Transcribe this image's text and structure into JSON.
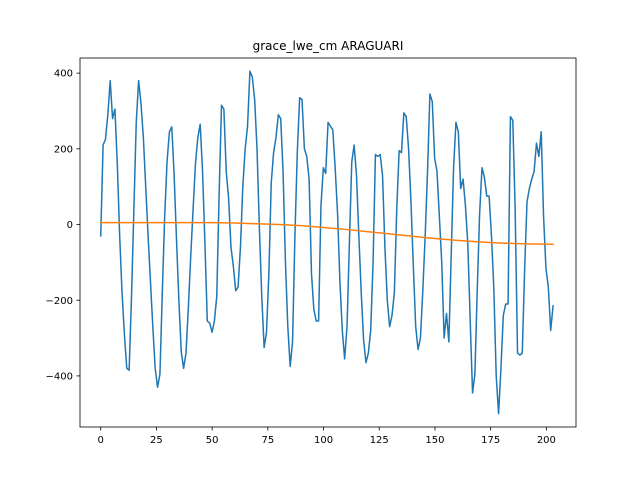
{
  "chart_data": {
    "type": "line",
    "title": "grace_lwe_cm ARAGUARI",
    "xlabel": "",
    "ylabel": "",
    "xlim": [
      -9.3,
      213.3
    ],
    "ylim": [
      -535,
      440
    ],
    "x_ticks": [
      0,
      25,
      50,
      75,
      100,
      125,
      150,
      175,
      200
    ],
    "y_ticks": [
      -400,
      -200,
      0,
      200,
      400
    ],
    "grid": false,
    "colors": {
      "series_1": "#1f77b4",
      "series_2": "#ff7f0e"
    },
    "series": [
      {
        "values": [
          [
            0,
            -30
          ],
          [
            1,
            210
          ],
          [
            2,
            225
          ],
          [
            3,
            290
          ],
          [
            4,
            380
          ],
          [
            5,
            280
          ],
          [
            6,
            305
          ],
          [
            7,
            160
          ],
          [
            8,
            -30
          ],
          [
            9,
            -180
          ],
          [
            10,
            -290
          ],
          [
            11,
            -380
          ],
          [
            12,
            -385
          ],
          [
            13,
            -190
          ],
          [
            14,
            40
          ],
          [
            15,
            270
          ],
          [
            16,
            380
          ],
          [
            17,
            320
          ],
          [
            18,
            230
          ],
          [
            19,
            100
          ],
          [
            20,
            -30
          ],
          [
            21,
            -150
          ],
          [
            22,
            -270
          ],
          [
            23,
            -380
          ],
          [
            24,
            -430
          ],
          [
            25,
            -395
          ],
          [
            26,
            -180
          ],
          [
            27,
            20
          ],
          [
            28,
            165
          ],
          [
            29,
            245
          ],
          [
            30,
            258
          ],
          [
            31,
            130
          ],
          [
            32,
            -40
          ],
          [
            33,
            -200
          ],
          [
            34,
            -335
          ],
          [
            35,
            -380
          ],
          [
            36,
            -340
          ],
          [
            37,
            -220
          ],
          [
            38,
            -85
          ],
          [
            39,
            40
          ],
          [
            40,
            160
          ],
          [
            41,
            230
          ],
          [
            42,
            265
          ],
          [
            43,
            140
          ],
          [
            44,
            -50
          ],
          [
            45,
            -255
          ],
          [
            46,
            -260
          ],
          [
            47,
            -285
          ],
          [
            48,
            -255
          ],
          [
            49,
            -190
          ],
          [
            50,
            80
          ],
          [
            51,
            315
          ],
          [
            52,
            305
          ],
          [
            53,
            140
          ],
          [
            54,
            70
          ],
          [
            55,
            -60
          ],
          [
            56,
            -110
          ],
          [
            57,
            -175
          ],
          [
            58,
            -165
          ],
          [
            59,
            -60
          ],
          [
            60,
            100
          ],
          [
            61,
            200
          ],
          [
            62,
            260
          ],
          [
            63,
            405
          ],
          [
            64,
            390
          ],
          [
            65,
            330
          ],
          [
            66,
            200
          ],
          [
            67,
            -10
          ],
          [
            68,
            -190
          ],
          [
            69,
            -325
          ],
          [
            70,
            -285
          ],
          [
            71,
            -130
          ],
          [
            72,
            110
          ],
          [
            73,
            190
          ],
          [
            74,
            230
          ],
          [
            75,
            290
          ],
          [
            76,
            280
          ],
          [
            77,
            140
          ],
          [
            78,
            -100
          ],
          [
            79,
            -270
          ],
          [
            80,
            -375
          ],
          [
            81,
            -310
          ],
          [
            82,
            -30
          ],
          [
            83,
            190
          ],
          [
            84,
            335
          ],
          [
            85,
            330
          ],
          [
            86,
            200
          ],
          [
            87,
            180
          ],
          [
            88,
            120
          ],
          [
            89,
            -130
          ],
          [
            90,
            -225
          ],
          [
            91,
            -255
          ],
          [
            92,
            -255
          ],
          [
            93,
            50
          ],
          [
            94,
            150
          ],
          [
            95,
            135
          ],
          [
            96,
            270
          ],
          [
            97,
            260
          ],
          [
            98,
            250
          ],
          [
            99,
            150
          ],
          [
            100,
            30
          ],
          [
            101,
            -150
          ],
          [
            102,
            -280
          ],
          [
            103,
            -355
          ],
          [
            104,
            -270
          ],
          [
            105,
            -50
          ],
          [
            106,
            165
          ],
          [
            107,
            210
          ],
          [
            108,
            130
          ],
          [
            109,
            -30
          ],
          [
            110,
            -180
          ],
          [
            111,
            -305
          ],
          [
            112,
            -365
          ],
          [
            113,
            -340
          ],
          [
            114,
            -280
          ],
          [
            115,
            -100
          ],
          [
            116,
            185
          ],
          [
            117,
            180
          ],
          [
            118,
            185
          ],
          [
            119,
            130
          ],
          [
            120,
            -60
          ],
          [
            121,
            -200
          ],
          [
            122,
            -270
          ],
          [
            123,
            -240
          ],
          [
            124,
            -180
          ],
          [
            125,
            40
          ],
          [
            126,
            195
          ],
          [
            127,
            190
          ],
          [
            128,
            295
          ],
          [
            129,
            285
          ],
          [
            130,
            200
          ],
          [
            131,
            60
          ],
          [
            132,
            -110
          ],
          [
            133,
            -270
          ],
          [
            134,
            -330
          ],
          [
            135,
            -300
          ],
          [
            136,
            -175
          ],
          [
            137,
            -30
          ],
          [
            138,
            140
          ],
          [
            139,
            345
          ],
          [
            140,
            325
          ],
          [
            141,
            175
          ],
          [
            142,
            140
          ],
          [
            143,
            20
          ],
          [
            144,
            -100
          ],
          [
            145,
            -300
          ],
          [
            146,
            -235
          ],
          [
            147,
            -310
          ],
          [
            148,
            -80
          ],
          [
            149,
            150
          ],
          [
            150,
            270
          ],
          [
            151,
            245
          ],
          [
            152,
            95
          ],
          [
            153,
            120
          ],
          [
            154,
            50
          ],
          [
            155,
            -50
          ],
          [
            156,
            -250
          ],
          [
            157,
            -445
          ],
          [
            158,
            -395
          ],
          [
            159,
            -170
          ],
          [
            160,
            30
          ],
          [
            161,
            150
          ],
          [
            162,
            125
          ],
          [
            163,
            75
          ],
          [
            164,
            75
          ],
          [
            165,
            -30
          ],
          [
            166,
            -170
          ],
          [
            167,
            -400
          ],
          [
            168,
            -500
          ],
          [
            169,
            -380
          ],
          [
            170,
            -240
          ],
          [
            171,
            -210
          ],
          [
            172,
            -210
          ],
          [
            173,
            285
          ],
          [
            174,
            275
          ],
          [
            175,
            40
          ],
          [
            176,
            -340
          ],
          [
            177,
            -345
          ],
          [
            178,
            -340
          ],
          [
            179,
            -120
          ],
          [
            180,
            60
          ],
          [
            181,
            95
          ],
          [
            182,
            120
          ],
          [
            183,
            140
          ],
          [
            184,
            215
          ],
          [
            185,
            180
          ],
          [
            186,
            245
          ],
          [
            187,
            20
          ],
          [
            188,
            -115
          ],
          [
            189,
            -165
          ],
          [
            190,
            -280
          ],
          [
            191,
            -215
          ]
        ],
        "x_stretch_note_unused": ""
      },
      {
        "values": [
          [
            0,
            5
          ],
          [
            25,
            5
          ],
          [
            50,
            5
          ],
          [
            60,
            4
          ],
          [
            70,
            2
          ],
          [
            80,
            0
          ],
          [
            90,
            -3
          ],
          [
            100,
            -8
          ],
          [
            110,
            -13
          ],
          [
            120,
            -19
          ],
          [
            130,
            -25
          ],
          [
            140,
            -31
          ],
          [
            150,
            -37
          ],
          [
            160,
            -42
          ],
          [
            170,
            -46
          ],
          [
            180,
            -49
          ],
          [
            190,
            -51
          ],
          [
            203,
            -52
          ]
        ]
      }
    ]
  }
}
